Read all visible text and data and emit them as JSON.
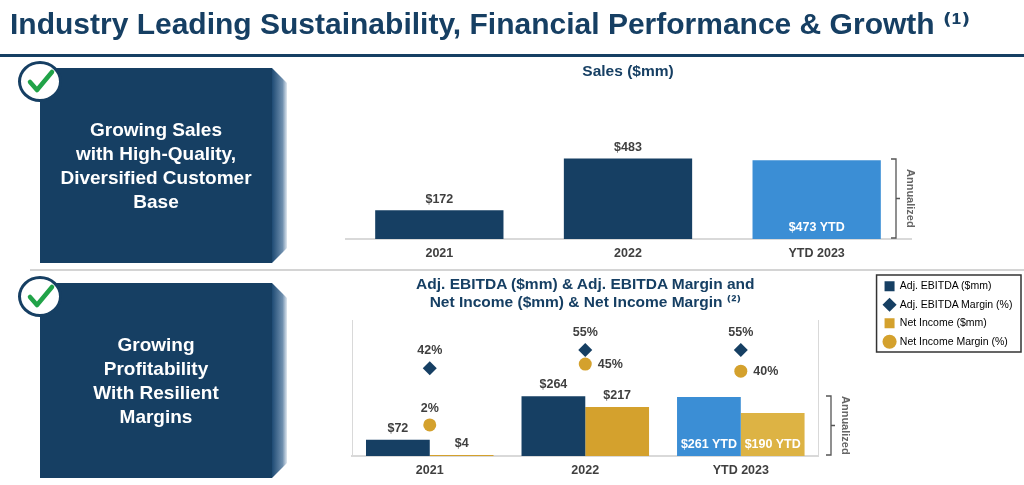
{
  "chart_data": [
    {
      "type": "other",
      "title": "Industry Leading Sustainability, Financial Performance & Growth ⁽¹⁾"
    },
    {
      "type": "other",
      "title": "Growing Sales\nwith High-Quality,\nDiversified Customer\nBase"
    },
    {
      "type": "bar",
      "title": "Sales ($mm)",
      "categories": [
        "2021",
        "2022",
        "YTD 2023"
      ],
      "values": [
        172,
        483,
        473
      ],
      "colors": [
        "#163f63",
        "#163f63",
        "#3b8ed5"
      ],
      "value_labels": [
        "$172",
        "$483",
        "$473 YTD"
      ],
      "tick_labels": "x",
      "annotations": [
        "Annualized"
      ]
    },
    {
      "type": "other",
      "title": "Growing\nProfitability\nWith Resilient\nMargins"
    },
    {
      "type": "bar",
      "title": "Adj. EBITDA ($mm) & Adj. EBITDA Margin and\nNet Income ($mm) & Net Income Margin ⁽²⁾",
      "categories": [
        "2021",
        "2022",
        "YTD 2023"
      ],
      "series": [
        {
          "name": "Adj. EBITDA ($mm)",
          "type": "bar",
          "color": "#163f63",
          "colors": [
            "#163f63",
            "#163f63",
            "#3b8ed5"
          ],
          "values": [
            72,
            264,
            261
          ],
          "value_labels": [
            "$72",
            "$264",
            "$261 YTD"
          ]
        },
        {
          "name": "Adj. EBITDA Margin (%)",
          "type": "scatter",
          "axis": "y2",
          "marker": "diamond",
          "color": "#163f63",
          "values": [
            42,
            55,
            55
          ],
          "value_labels": [
            "42%",
            "55%",
            "55%"
          ]
        },
        {
          "name": "Net Income ($mm)",
          "type": "bar",
          "color": "#d4a12d",
          "colors": [
            "#d4a12d",
            "#d4a12d",
            "#ddb344"
          ],
          "values": [
            4,
            217,
            190
          ],
          "value_labels": [
            "$4",
            "$217",
            "$190 YTD"
          ]
        },
        {
          "name": "Net Income Margin (%)",
          "type": "scatter",
          "axis": "y2",
          "marker": "circle",
          "color": "#d4a12d",
          "values": [
            2,
            45,
            40
          ],
          "value_labels": [
            "2%",
            "45%",
            "40%"
          ]
        }
      ],
      "ylim": [
        0,
        600
      ],
      "y2lim": [
        -20,
        76
      ],
      "legend": "top right",
      "tick_labels": "x",
      "annotations": [
        "Annualized"
      ]
    }
  ]
}
